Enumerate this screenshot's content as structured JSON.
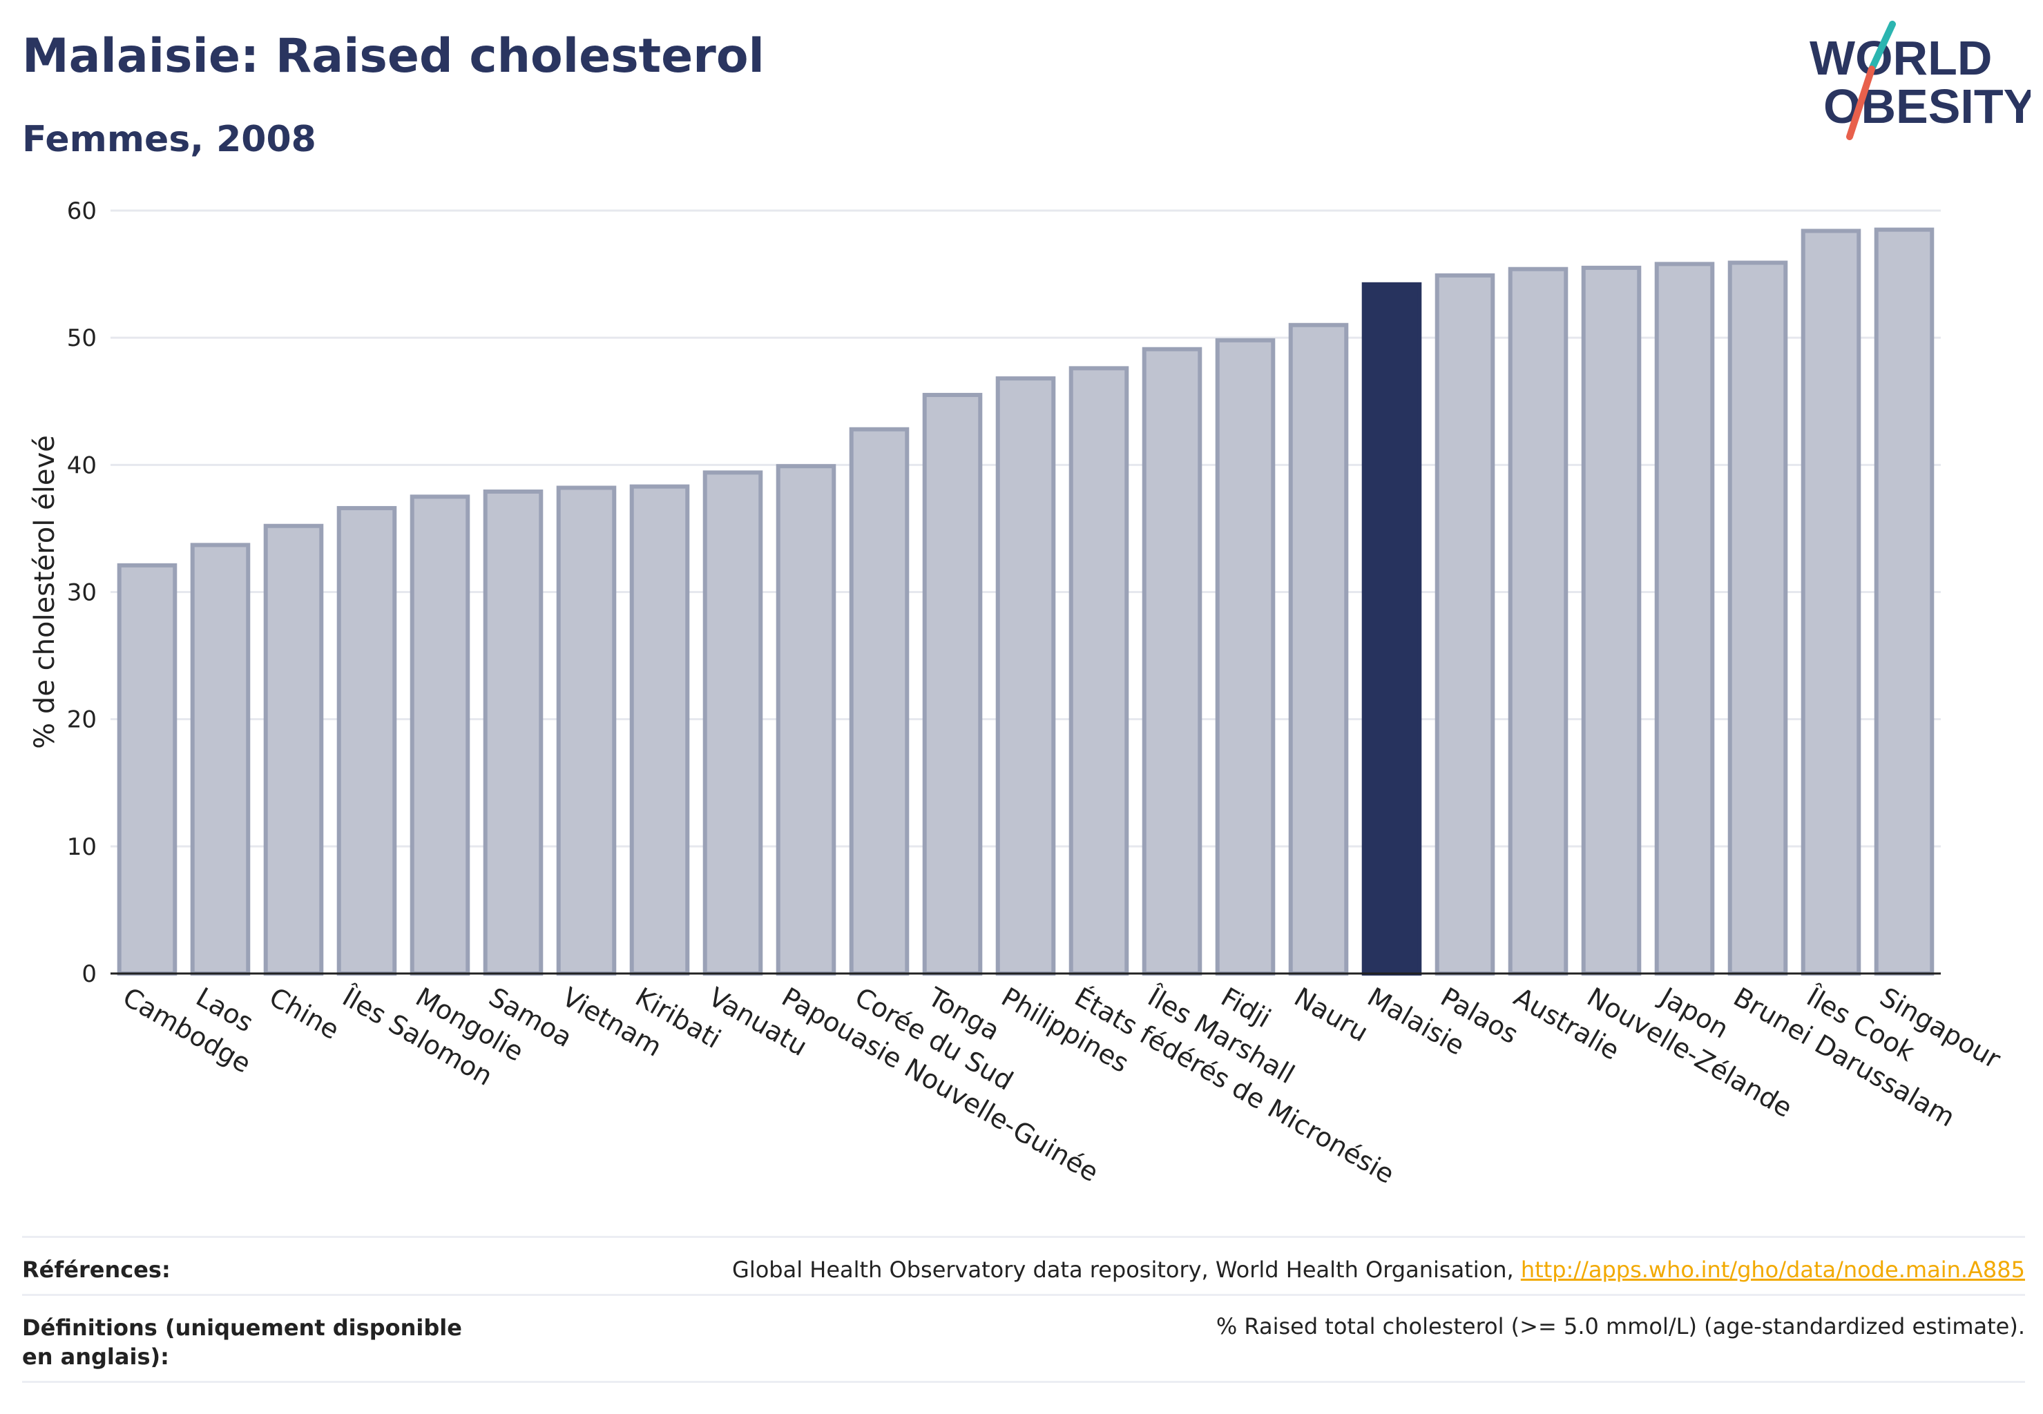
{
  "header": {
    "title": "Malaisie: Raised cholesterol",
    "subtitle": "Femmes, 2008"
  },
  "logo": {
    "line1": "WORLD",
    "line2": "OBESITY"
  },
  "colors": {
    "bar": "#bfc3d0",
    "bar_border": "#9aa1b6",
    "highlight": "#27335e",
    "grid": "#e6e8ee",
    "axis": "#222222"
  },
  "chart_data": {
    "type": "bar",
    "title": "Malaisie: Raised cholesterol",
    "subtitle": "Femmes, 2008",
    "ylabel": "% de cholestérol élevé",
    "xlabel": "",
    "ylim": [
      0,
      60
    ],
    "yticks": [
      0,
      10,
      20,
      30,
      40,
      50,
      60
    ],
    "grid": true,
    "highlight": "Malaisie",
    "categories": [
      "Cambodge",
      "Laos",
      "Chine",
      "Îles Salomon",
      "Mongolie",
      "Samoa",
      "Vietnam",
      "Kiribati",
      "Vanuatu",
      "Papouasie Nouvelle-Guinée",
      "Corée du Sud",
      "Tonga",
      "Philippines",
      "États fédérés de Micronésie",
      "Îles Marshall",
      "Fidji",
      "Nauru",
      "Malaisie",
      "Palaos",
      "Australie",
      "Nouvelle-Zélande",
      "Japon",
      "Brunei Darussalam",
      "Îles Cook",
      "Singapour"
    ],
    "values": [
      32.1,
      33.7,
      35.2,
      36.6,
      37.5,
      37.9,
      38.2,
      38.3,
      39.4,
      39.9,
      42.8,
      45.5,
      46.8,
      47.6,
      49.1,
      49.8,
      51.0,
      54.2,
      54.9,
      55.4,
      55.5,
      55.8,
      55.9,
      58.4,
      58.5
    ]
  },
  "footer": {
    "references_label": "Références:",
    "references_text": "Global Health Observatory data repository, World Health Organisation, ",
    "references_link": "http://apps.who.int/gho/data/node.main.A885",
    "definitions_label": "Définitions (uniquement disponible en anglais):",
    "definitions_text": "% Raised total cholesterol (>= 5.0 mmol/L) (age-standardized estimate)."
  }
}
